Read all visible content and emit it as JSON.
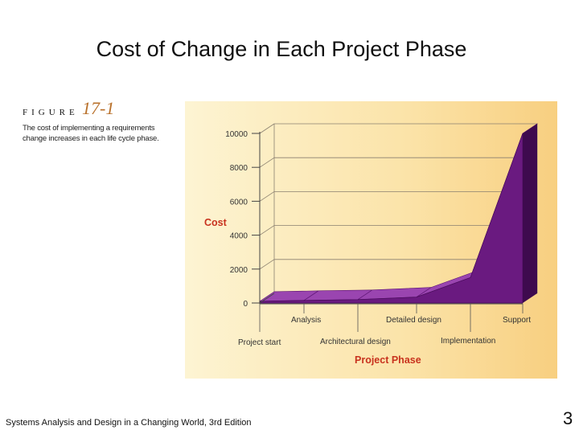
{
  "slide": {
    "title": "Cost of Change in Each Project Phase",
    "footer": "Systems Analysis and Design in a Changing World, 3rd Edition",
    "page_number": "3"
  },
  "figure": {
    "label": "FIGURE",
    "number": "17-1",
    "caption": "The cost of implementing a requirements change increases in each life cycle phase."
  },
  "chart_data": {
    "type": "area",
    "ylabel": "Cost",
    "xlabel": "Project Phase",
    "ylim": [
      0,
      10000
    ],
    "yticks": [
      "0",
      "2000",
      "4000",
      "6000",
      "8000",
      "10000"
    ],
    "categories": [
      "Project start",
      "Analysis",
      "Architectural design",
      "Detailed design",
      "Implementation",
      "Support"
    ],
    "values": [
      100,
      150,
      200,
      350,
      1500,
      10000
    ],
    "grid": true,
    "colors": {
      "area": "#6a1a80",
      "area_top": "#9a45b0",
      "area_side": "#3e0a4e",
      "axis_label": "#c8321e"
    }
  }
}
